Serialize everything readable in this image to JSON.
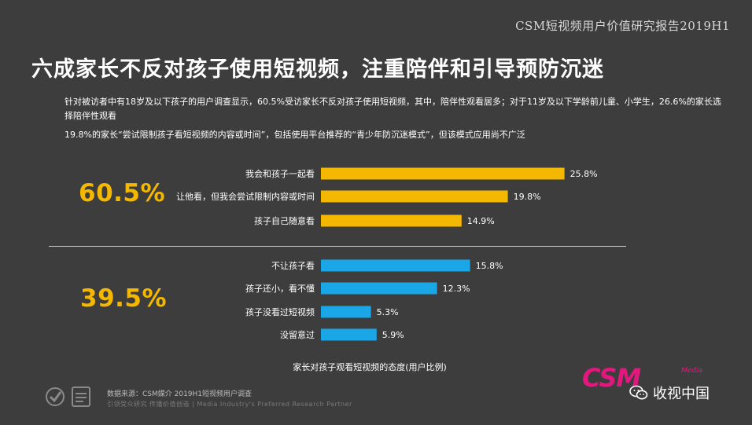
{
  "header": {
    "report_tag": "CSM短视频用户价值研究报告2019H1",
    "title": "六成家长不反对孩子使用短视频，注重陪伴和引导预防沉迷"
  },
  "description": {
    "para1": "针对被访者中有18岁及以下孩子的用户调查显示，60.5%受访家长不反对孩子使用短视频，其中，陪伴性观看居多；对于11岁及以下学龄前儿童、小学生，26.6%的家长选择陪伴性观看",
    "para2": "19.8%的家长“尝试限制孩子看短视频的内容或时间”，包括使用平台推荐的“青少年防沉迷模式”，但该模式应用尚不广泛"
  },
  "groups": {
    "top_pct": "60.5%",
    "bottom_pct": "39.5%"
  },
  "chart_data": {
    "type": "bar",
    "orientation": "horizontal",
    "categories": [
      "我会和孩子一起看",
      "让他看，但我会尝试限制内容或时间",
      "孩子自己随意看",
      "不让孩子看",
      "孩子还小，看不懂",
      "孩子没看过短视频",
      "没留意过"
    ],
    "values": [
      25.8,
      19.8,
      14.9,
      15.8,
      12.3,
      5.3,
      5.9
    ],
    "value_labels": [
      "25.8%",
      "19.8%",
      "14.9%",
      "15.8%",
      "12.3%",
      "5.3%",
      "5.9%"
    ],
    "group_of_category": [
      "top",
      "top",
      "top",
      "bottom",
      "bottom",
      "bottom",
      "bottom"
    ],
    "colors": {
      "top": "#f5b800",
      "bottom": "#1aa7e8"
    },
    "xlim": [
      0,
      30
    ],
    "title": "家长对孩子观看短视频的态度(用户比例)"
  },
  "footer": {
    "source": "数据来源：CSM媒介 2019H1短视频用户调查",
    "slogan": "引领受众研究  传播价值创造  |  Media Industry's Preferred Research Partner",
    "brand": "CSM",
    "brand_sub": "Media",
    "wechat_name": "收视中国"
  }
}
